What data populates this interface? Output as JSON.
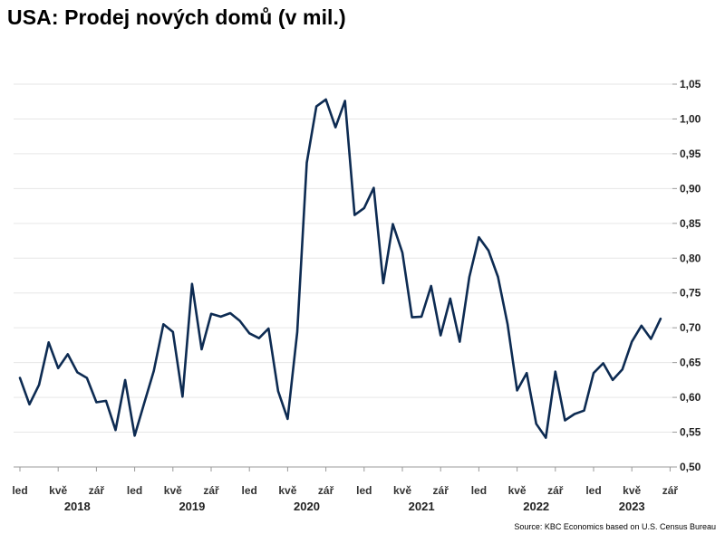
{
  "title": "USA: Prodej nových domů (v mil.)",
  "source": "Source: KBC Economics based on U.S. Census Bureau",
  "colors": {
    "line": "#0d2b52",
    "grid": "#e6e6e6",
    "axis": "#999999"
  },
  "chart_data": {
    "type": "line",
    "title": "USA: Prodej nových domů (v mil.)",
    "xlabel": "",
    "ylabel": "",
    "ylim": [
      0.5,
      1.05
    ],
    "yticks": [
      0.5,
      0.55,
      0.6,
      0.65,
      0.7,
      0.75,
      0.8,
      0.85,
      0.9,
      0.95,
      1.0,
      1.05
    ],
    "ytick_labels": [
      "0,50",
      "0,55",
      "0,60",
      "0,65",
      "0,70",
      "0,75",
      "0,80",
      "0,85",
      "0,90",
      "0,95",
      "1,00",
      "1,05"
    ],
    "y_axis_position": "right",
    "grid": true,
    "x_start": "2018-01",
    "xtick_labels": [
      {
        "month": 0,
        "label": "led"
      },
      {
        "month": 4,
        "label": "kvě"
      },
      {
        "month": 8,
        "label": "zář"
      },
      {
        "month": 12,
        "label": "led"
      },
      {
        "month": 16,
        "label": "kvě"
      },
      {
        "month": 20,
        "label": "zář"
      },
      {
        "month": 24,
        "label": "led"
      },
      {
        "month": 28,
        "label": "kvě"
      },
      {
        "month": 32,
        "label": "zář"
      },
      {
        "month": 36,
        "label": "led"
      },
      {
        "month": 40,
        "label": "kvě"
      },
      {
        "month": 44,
        "label": "zář"
      },
      {
        "month": 48,
        "label": "led"
      },
      {
        "month": 52,
        "label": "kvě"
      },
      {
        "month": 56,
        "label": "zář"
      },
      {
        "month": 60,
        "label": "led"
      },
      {
        "month": 64,
        "label": "kvě"
      },
      {
        "month": 68,
        "label": "zář"
      }
    ],
    "year_labels": [
      {
        "month": 6,
        "label": "2018"
      },
      {
        "month": 18,
        "label": "2019"
      },
      {
        "month": 30,
        "label": "2020"
      },
      {
        "month": 42,
        "label": "2021"
      },
      {
        "month": 54,
        "label": "2022"
      },
      {
        "month": 64,
        "label": "2023"
      }
    ],
    "series": [
      {
        "values": [
          0.628,
          0.59,
          0.618,
          0.679,
          0.642,
          0.662,
          0.636,
          0.628,
          0.593,
          0.595,
          0.553,
          0.625,
          0.545,
          0.592,
          0.638,
          0.705,
          0.694,
          0.601,
          0.763,
          0.669,
          0.72,
          0.716,
          0.721,
          0.71,
          0.692,
          0.685,
          0.699,
          0.609,
          0.569,
          0.694,
          0.937,
          1.018,
          1.028,
          0.988,
          1.026,
          0.862,
          0.872,
          0.901,
          0.764,
          0.849,
          0.808,
          0.715,
          0.716,
          0.76,
          0.689,
          0.742,
          0.68,
          0.773,
          0.83,
          0.811,
          0.773,
          0.705,
          0.61,
          0.635,
          0.562,
          0.542,
          0.637,
          0.567,
          0.576,
          0.581,
          0.635,
          0.649,
          0.625,
          0.64,
          0.68,
          0.703,
          0.684,
          0.713
        ]
      }
    ]
  }
}
